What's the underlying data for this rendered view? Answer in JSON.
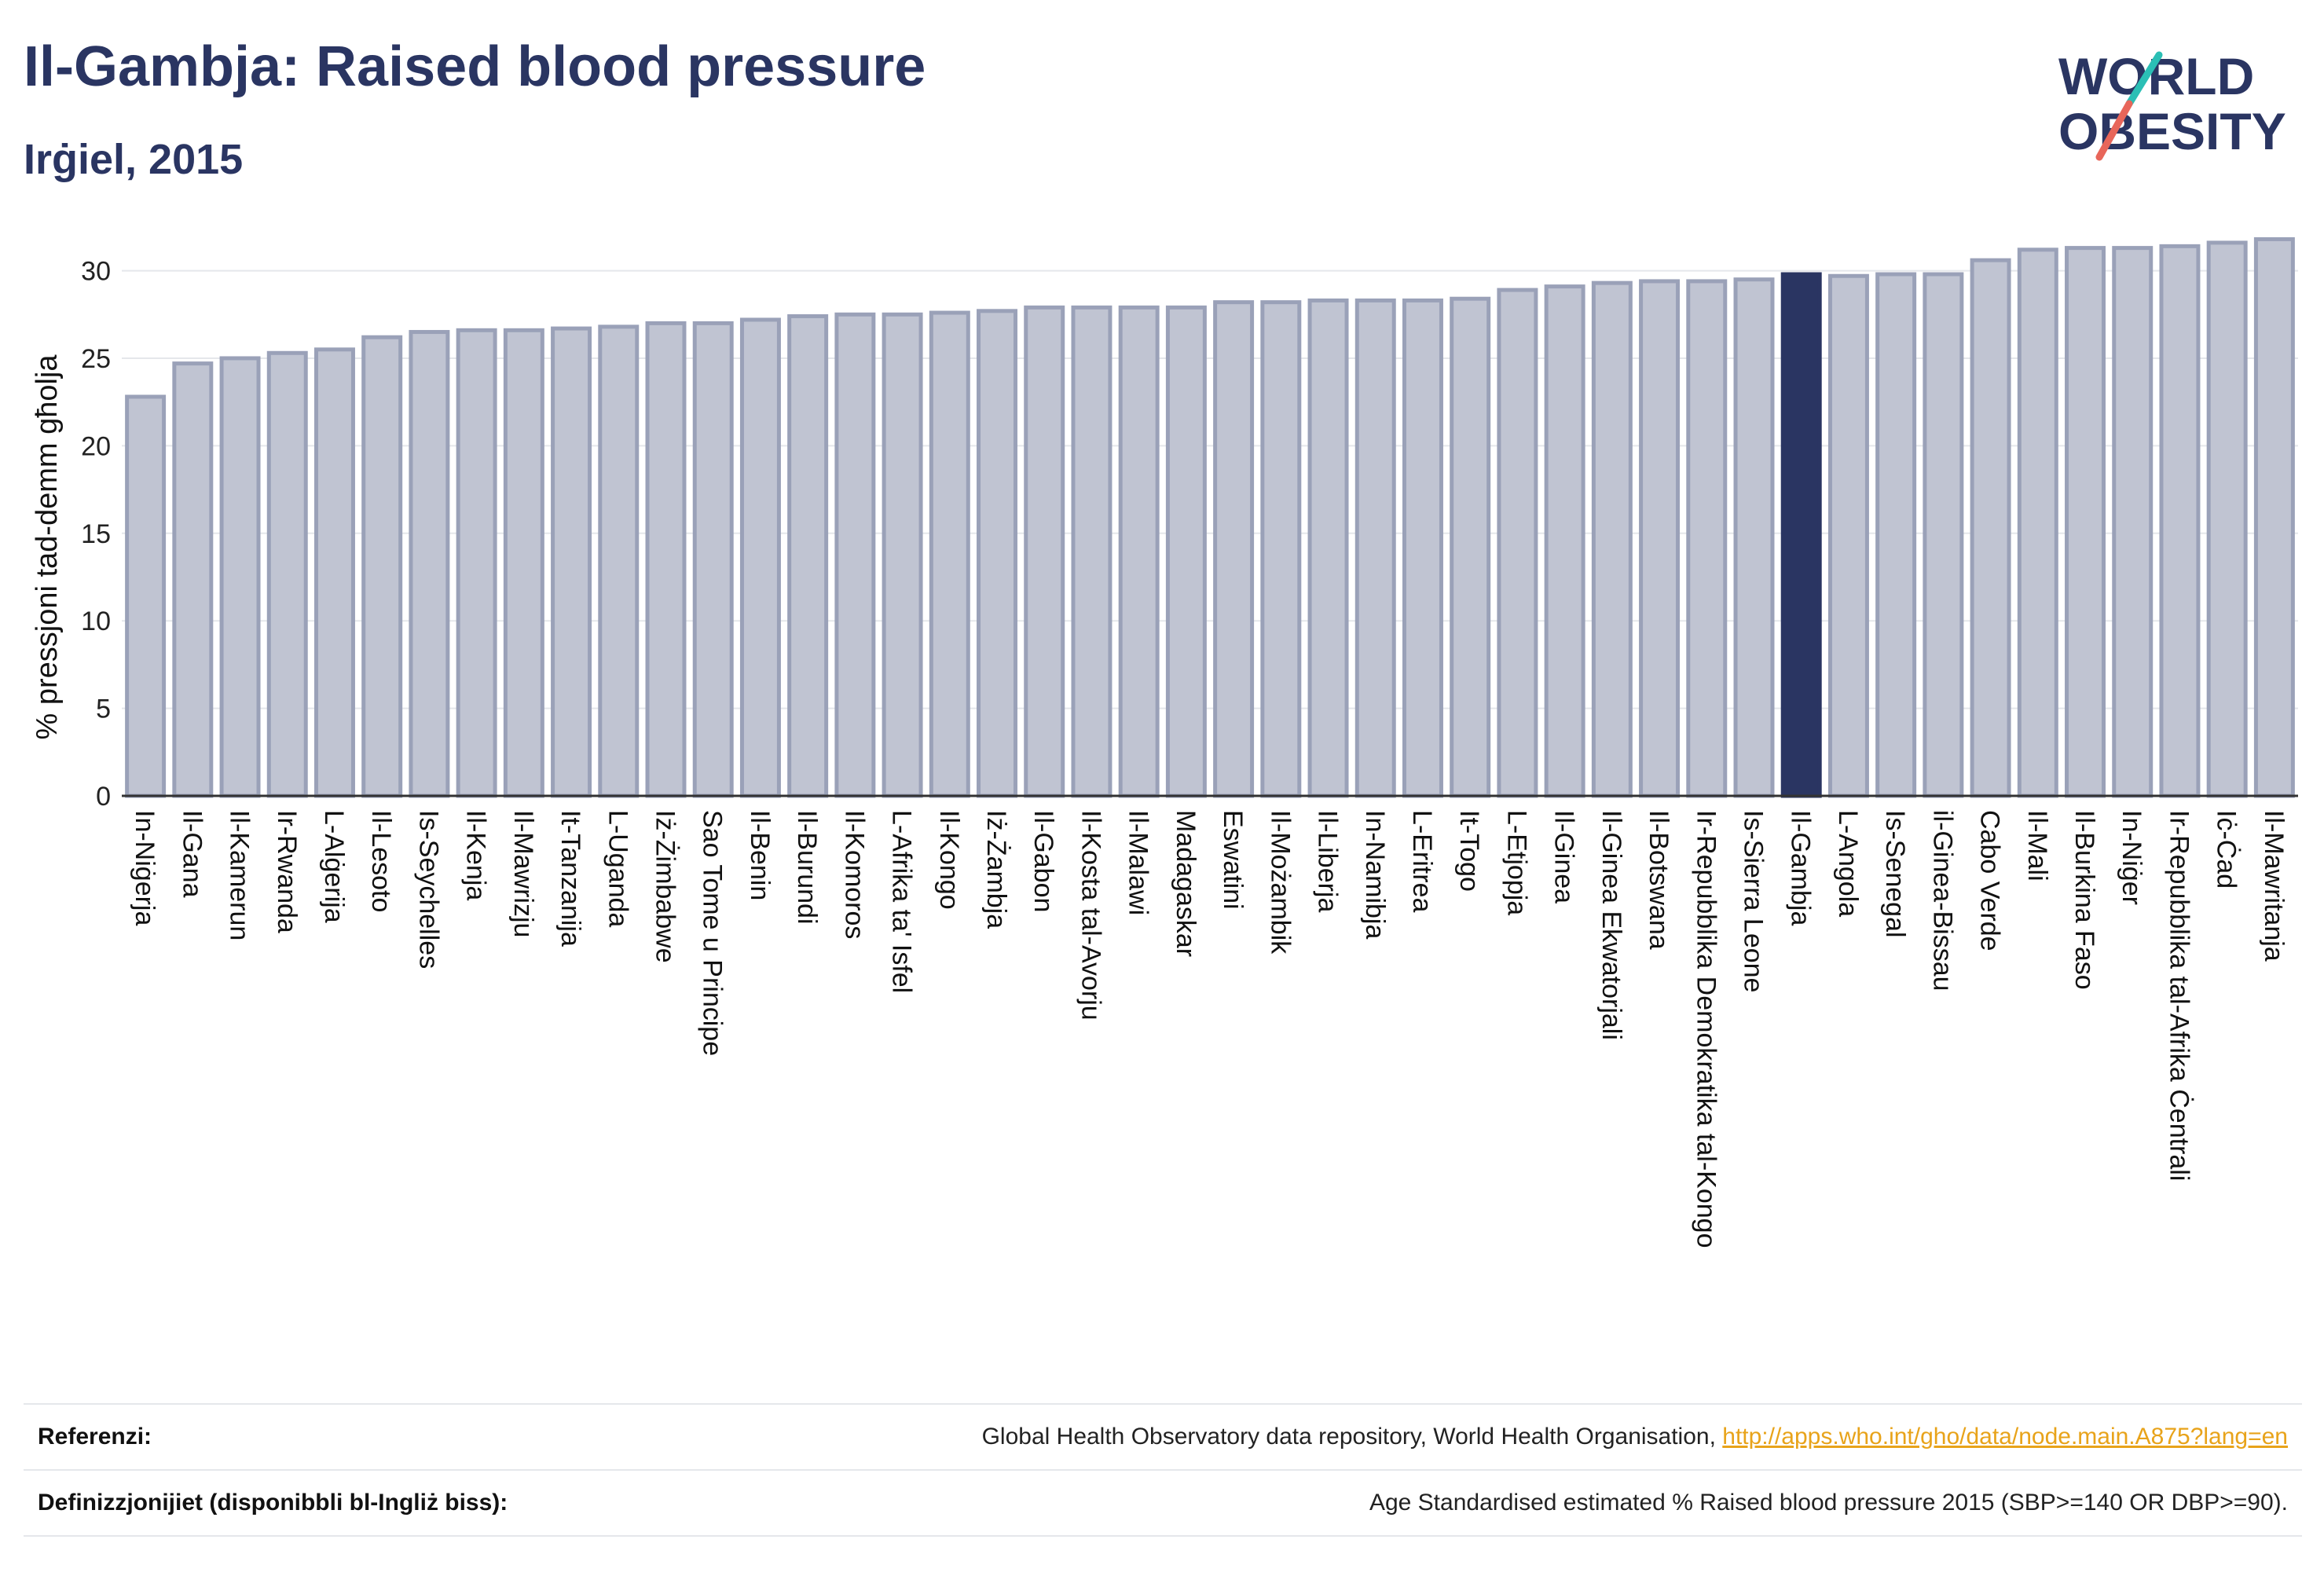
{
  "header": {
    "title": "Il-Gambja: Raised blood pressure",
    "subtitle": "Irġiel, 2015"
  },
  "logo": {
    "line1": "WORLD",
    "line2": "OBESITY",
    "icon": "world-obesity-logo",
    "slash_colors": [
      "#2bbfb5",
      "#e8665a"
    ],
    "text_color": "#2a3562"
  },
  "chart_data": {
    "type": "bar",
    "ylabel": "% pressjoni tad-demm għolja",
    "xlabel": "",
    "ylim": [
      0,
      32
    ],
    "yticks": [
      0,
      5,
      10,
      15,
      20,
      25,
      30
    ],
    "grid": true,
    "highlight": "Il-Gambja",
    "colors": {
      "bar": "#c0c4d2",
      "bar_outline": "#9aa1b8",
      "highlight": "#2a3562"
    },
    "categories": [
      "In-Niġerja",
      "Il-Gana",
      "Il-Kamerun",
      "Ir-Rwanda",
      "L-Alġerija",
      "Il-Lesoto",
      "Is-Seychelles",
      "Il-Kenja",
      "Il-Mawrizju",
      "It-Tanzanija",
      "L-Uganda",
      "Iż-Żimbabwe",
      "Sao Tome u Principe",
      "Il-Benin",
      "Il-Burundi",
      "Il-Komoros",
      "L-Afrika ta' Isfel",
      "Il-Kongo",
      "Iż-Żambja",
      "Il-Gabon",
      "Il-Kosta tal-Avorju",
      "Il-Malawi",
      "Madagaskar",
      "Eswatini",
      "Il-Możambik",
      "Il-Liberja",
      "In-Namibja",
      "L-Eritrea",
      "It-Togo",
      "L-Etjopja",
      "Il-Ginea",
      "Il-Ginea Ekwatorjali",
      "Il-Botswana",
      "Ir-Repubblika Demokratika tal-Kongo",
      "Is-Sierra Leone",
      "Il-Gambja",
      "L-Angola",
      "Is-Senegal",
      "il-Ginea-Bissau",
      "Cabo Verde",
      "Il-Mali",
      "Il-Burkina Faso",
      "In-Niġer",
      "Ir-Repubblika tal-Afrika Ċentrali",
      "Iċ-Ċad",
      "Il-Mawritanja"
    ],
    "values": [
      22.8,
      24.7,
      25.0,
      25.3,
      25.5,
      26.2,
      26.5,
      26.6,
      26.6,
      26.7,
      26.8,
      27.0,
      27.0,
      27.2,
      27.4,
      27.5,
      27.5,
      27.6,
      27.7,
      27.9,
      27.9,
      27.9,
      27.9,
      28.2,
      28.2,
      28.3,
      28.3,
      28.3,
      28.4,
      28.9,
      29.1,
      29.3,
      29.4,
      29.4,
      29.5,
      29.8,
      29.7,
      29.8,
      29.8,
      30.6,
      31.2,
      31.3,
      31.3,
      31.4,
      31.6,
      31.8
    ]
  },
  "footer": {
    "references_label": "Referenzi:",
    "references_text": "Global Health Observatory data repository, World Health Organisation, ",
    "references_link": "http://apps.who.int/gho/data/node.main.A875?lang=en",
    "definitions_label": "Definizzjonijiet (disponibbli bl-Ingliż biss):",
    "definitions_text": "Age Standardised estimated % Raised blood pressure 2015 (SBP>=140 OR DBP>=90)."
  }
}
